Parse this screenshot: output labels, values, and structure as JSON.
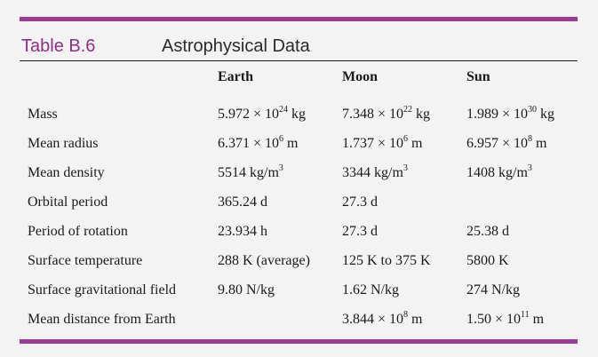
{
  "caption": {
    "label": "Table B.6",
    "title": "Astrophysical Data"
  },
  "columns": [
    "",
    "Earth",
    "Moon",
    "Sun"
  ],
  "rows": [
    {
      "name": "Mass",
      "cells": [
        {
          "mantissa": "5.972 × 10",
          "exp": "24",
          "unit": " kg"
        },
        {
          "mantissa": "7.348 × 10",
          "exp": "22",
          "unit": " kg"
        },
        {
          "mantissa": "1.989 × 10",
          "exp": "30",
          "unit": " kg"
        }
      ]
    },
    {
      "name": "Mean radius",
      "cells": [
        {
          "mantissa": "6.371 × 10",
          "exp": "6",
          "unit": " m"
        },
        {
          "mantissa": "1.737 × 10",
          "exp": "6",
          "unit": " m"
        },
        {
          "mantissa": "6.957 × 10",
          "exp": "8",
          "unit": " m"
        }
      ]
    },
    {
      "name": "Mean density",
      "cells": [
        {
          "mantissa": "5514 kg/m",
          "exp": "3",
          "unit": ""
        },
        {
          "mantissa": "3344 kg/m",
          "exp": "3",
          "unit": ""
        },
        {
          "mantissa": "1408 kg/m",
          "exp": "3",
          "unit": ""
        }
      ]
    },
    {
      "name": "Orbital period",
      "cells": [
        {
          "mantissa": "365.24 d",
          "exp": "",
          "unit": ""
        },
        {
          "mantissa": "27.3 d",
          "exp": "",
          "unit": ""
        },
        {
          "mantissa": "",
          "exp": "",
          "unit": ""
        }
      ]
    },
    {
      "name": "Period of rotation",
      "cells": [
        {
          "mantissa": "23.934 h",
          "exp": "",
          "unit": ""
        },
        {
          "mantissa": "27.3 d",
          "exp": "",
          "unit": ""
        },
        {
          "mantissa": "25.38 d",
          "exp": "",
          "unit": ""
        }
      ]
    },
    {
      "name": "Surface temperature",
      "cells": [
        {
          "mantissa": "288 K (average)",
          "exp": "",
          "unit": ""
        },
        {
          "mantissa": "125 K to 375 K",
          "exp": "",
          "unit": ""
        },
        {
          "mantissa": "5800 K",
          "exp": "",
          "unit": ""
        }
      ]
    },
    {
      "name": "Surface gravitational field",
      "cells": [
        {
          "mantissa": "9.80 N/kg",
          "exp": "",
          "unit": ""
        },
        {
          "mantissa": "1.62 N/kg",
          "exp": "",
          "unit": ""
        },
        {
          "mantissa": "274 N/kg",
          "exp": "",
          "unit": ""
        }
      ]
    },
    {
      "name": "Mean distance from Earth",
      "cells": [
        {
          "mantissa": "",
          "exp": "",
          "unit": ""
        },
        {
          "mantissa": "3.844 × 10",
          "exp": "8",
          "unit": " m"
        },
        {
          "mantissa": "1.50 × 10",
          "exp": "11",
          "unit": " m"
        }
      ]
    }
  ],
  "colors": {
    "accent": "#9b3a93",
    "label": "#8d2f88",
    "background": "#f4f3f4"
  }
}
